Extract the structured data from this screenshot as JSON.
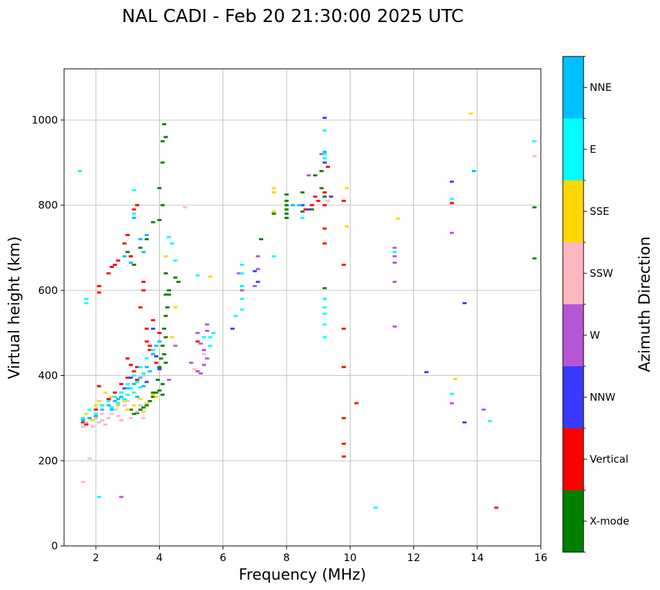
{
  "chart_data": {
    "type": "scatter",
    "title": "NAL CADI - Feb 20 21:30:00 2025 UTC",
    "xlabel": "Frequency (MHz)",
    "ylabel": "Virtual height (km)",
    "xlim": [
      1,
      16
    ],
    "ylim": [
      0,
      1120
    ],
    "xticks": [
      2,
      4,
      6,
      8,
      10,
      12,
      14,
      16
    ],
    "yticks": [
      0,
      200,
      400,
      600,
      800,
      1000
    ],
    "grid": true,
    "colorbar": {
      "label": "Azimuth Direction",
      "categories": [
        "X-mode",
        "Vertical",
        "NNW",
        "W",
        "SSW",
        "SSE",
        "E",
        "NNE"
      ],
      "colors": [
        "#008000",
        "#ff0000",
        "#3a3aff",
        "#b656d6",
        "#ffb6c1",
        "#ffd700",
        "#00ffff",
        "#00bfff"
      ]
    },
    "series": [
      {
        "name": "X-mode",
        "points": [
          [
            3.0,
            690
          ],
          [
            3.1,
            680
          ],
          [
            3.2,
            660
          ],
          [
            3.4,
            700
          ],
          [
            3.6,
            720
          ],
          [
            3.8,
            760
          ],
          [
            4.0,
            840
          ],
          [
            4.1,
            950
          ],
          [
            4.15,
            990
          ],
          [
            4.1,
            900
          ],
          [
            4.2,
            960
          ],
          [
            4.1,
            800
          ],
          [
            4.0,
            765
          ],
          [
            4.2,
            640
          ],
          [
            4.3,
            590
          ],
          [
            4.25,
            560
          ],
          [
            4.2,
            540
          ],
          [
            4.15,
            510
          ],
          [
            4.2,
            490
          ],
          [
            4.1,
            470
          ],
          [
            4.15,
            450
          ],
          [
            4.05,
            440
          ],
          [
            4.2,
            430
          ],
          [
            4.0,
            420
          ],
          [
            3.95,
            390
          ],
          [
            4.0,
            365
          ],
          [
            3.9,
            360
          ],
          [
            4.1,
            355
          ],
          [
            3.8,
            350
          ],
          [
            3.7,
            340
          ],
          [
            3.6,
            330
          ],
          [
            3.5,
            325
          ],
          [
            3.4,
            320
          ],
          [
            3.3,
            312
          ],
          [
            3.2,
            310
          ],
          [
            3.1,
            320
          ],
          [
            4.3,
            600
          ],
          [
            4.2,
            590
          ],
          [
            4.6,
            620
          ],
          [
            4.5,
            630
          ],
          [
            8.0,
            770
          ],
          [
            8.0,
            780
          ],
          [
            8.0,
            790
          ],
          [
            8.0,
            800
          ],
          [
            8.0,
            810
          ],
          [
            8.0,
            825
          ],
          [
            8.5,
            785
          ],
          [
            8.8,
            790
          ],
          [
            8.5,
            830
          ],
          [
            8.9,
            870
          ],
          [
            9.1,
            880
          ],
          [
            9.1,
            840
          ],
          [
            9.2,
            820
          ],
          [
            9.2,
            605
          ],
          [
            15.8,
            795
          ],
          [
            15.8,
            675
          ],
          [
            7.6,
            780
          ],
          [
            7.2,
            720
          ],
          [
            3.8,
            360
          ],
          [
            4.1,
            380
          ]
        ]
      },
      {
        "name": "Vertical",
        "points": [
          [
            1.6,
            290
          ],
          [
            1.7,
            285
          ],
          [
            1.8,
            300
          ],
          [
            2.0,
            320
          ],
          [
            2.1,
            375
          ],
          [
            2.1,
            610
          ],
          [
            2.1,
            595
          ],
          [
            2.4,
            640
          ],
          [
            2.5,
            655
          ],
          [
            2.6,
            660
          ],
          [
            2.7,
            670
          ],
          [
            2.9,
            710
          ],
          [
            3.0,
            730
          ],
          [
            3.1,
            680
          ],
          [
            3.2,
            790
          ],
          [
            3.3,
            800
          ],
          [
            3.0,
            440
          ],
          [
            3.1,
            425
          ],
          [
            3.2,
            410
          ],
          [
            3.3,
            390
          ],
          [
            3.4,
            560
          ],
          [
            3.5,
            600
          ],
          [
            3.6,
            510
          ],
          [
            3.7,
            470
          ],
          [
            3.8,
            530
          ],
          [
            3.9,
            430
          ],
          [
            3.0,
            395
          ],
          [
            2.8,
            380
          ],
          [
            2.6,
            360
          ],
          [
            2.4,
            345
          ],
          [
            2.2,
            330
          ],
          [
            3.5,
            620
          ],
          [
            3.6,
            480
          ],
          [
            3.7,
            460
          ],
          [
            4.0,
            500
          ],
          [
            8.8,
            800
          ],
          [
            8.9,
            820
          ],
          [
            9.0,
            810
          ],
          [
            9.2,
            830
          ],
          [
            9.2,
            745
          ],
          [
            9.2,
            710
          ],
          [
            9.2,
            800
          ],
          [
            9.8,
            810
          ],
          [
            9.8,
            660
          ],
          [
            9.8,
            510
          ],
          [
            9.8,
            420
          ],
          [
            9.8,
            300
          ],
          [
            9.8,
            240
          ],
          [
            9.8,
            210
          ],
          [
            10.2,
            335
          ],
          [
            13.2,
            805
          ],
          [
            14.6,
            90
          ],
          [
            9.3,
            890
          ],
          [
            8.6,
            790
          ],
          [
            5.2,
            480
          ],
          [
            3.3,
            420
          ]
        ]
      },
      {
        "name": "NNW",
        "points": [
          [
            9.2,
            1005
          ],
          [
            9.2,
            900
          ],
          [
            8.7,
            790
          ],
          [
            8.5,
            800
          ],
          [
            9.4,
            820
          ],
          [
            6.3,
            510
          ],
          [
            7.0,
            645
          ],
          [
            7.1,
            620
          ],
          [
            13.2,
            855
          ],
          [
            13.6,
            570
          ],
          [
            13.9,
            880
          ],
          [
            12.4,
            408
          ],
          [
            13.6,
            290
          ],
          [
            14.2,
            320
          ],
          [
            3.8,
            510
          ],
          [
            3.1,
            395
          ],
          [
            2.9,
            370
          ],
          [
            3.9,
            445
          ],
          [
            4.0,
            415
          ],
          [
            3.6,
            385
          ]
        ]
      },
      {
        "name": "W",
        "points": [
          [
            5.2,
            500
          ],
          [
            5.3,
            475
          ],
          [
            5.4,
            460
          ],
          [
            5.5,
            440
          ],
          [
            5.4,
            425
          ],
          [
            5.0,
            430
          ],
          [
            5.2,
            410
          ],
          [
            5.3,
            405
          ],
          [
            5.5,
            520
          ],
          [
            5.5,
            505
          ],
          [
            4.5,
            470
          ],
          [
            4.3,
            390
          ],
          [
            7.0,
            610
          ],
          [
            7.1,
            650
          ],
          [
            7.1,
            680
          ],
          [
            11.4,
            700
          ],
          [
            11.4,
            680
          ],
          [
            11.4,
            665
          ],
          [
            11.4,
            620
          ],
          [
            13.2,
            735
          ],
          [
            13.2,
            335
          ],
          [
            14.2,
            320
          ],
          [
            8.7,
            870
          ],
          [
            9.1,
            920
          ],
          [
            6.6,
            600
          ],
          [
            6.5,
            640
          ],
          [
            11.4,
            515
          ],
          [
            2.8,
            115
          ]
        ]
      },
      {
        "name": "SSW",
        "points": [
          [
            1.6,
            280
          ],
          [
            1.7,
            290
          ],
          [
            1.9,
            280
          ],
          [
            2.0,
            300
          ],
          [
            2.1,
            290
          ],
          [
            2.2,
            295
          ],
          [
            2.3,
            285
          ],
          [
            2.4,
            300
          ],
          [
            2.5,
            310
          ],
          [
            2.6,
            320
          ],
          [
            2.7,
            305
          ],
          [
            2.8,
            295
          ],
          [
            2.9,
            330
          ],
          [
            3.0,
            340
          ],
          [
            3.1,
            300
          ],
          [
            3.3,
            315
          ],
          [
            3.4,
            330
          ],
          [
            3.5,
            300
          ],
          [
            2.2,
            310
          ],
          [
            1.8,
            205
          ],
          [
            1.6,
            150
          ],
          [
            4.8,
            795
          ],
          [
            15.8,
            915
          ],
          [
            9.3,
            810
          ],
          [
            5.4,
            450
          ],
          [
            5.1,
            415
          ],
          [
            2.0,
            300
          ],
          [
            3.5,
            400
          ]
        ]
      },
      {
        "name": "SSE",
        "points": [
          [
            1.6,
            300
          ],
          [
            1.7,
            310
          ],
          [
            1.9,
            295
          ],
          [
            2.0,
            330
          ],
          [
            2.1,
            340
          ],
          [
            2.3,
            360
          ],
          [
            2.5,
            350
          ],
          [
            2.7,
            330
          ],
          [
            2.9,
            340
          ],
          [
            3.0,
            320
          ],
          [
            3.2,
            330
          ],
          [
            3.4,
            345
          ],
          [
            3.6,
            335
          ],
          [
            3.8,
            355
          ],
          [
            3.5,
            315
          ],
          [
            7.6,
            840
          ],
          [
            7.6,
            830
          ],
          [
            7.6,
            785
          ],
          [
            9.9,
            840
          ],
          [
            9.9,
            750
          ],
          [
            11.5,
            768
          ],
          [
            13.8,
            1015
          ],
          [
            13.3,
            392
          ],
          [
            5.6,
            632
          ],
          [
            4.2,
            680
          ],
          [
            4.5,
            560
          ],
          [
            4.4,
            490
          ],
          [
            3.9,
            350
          ]
        ]
      },
      {
        "name": "E",
        "points": [
          [
            1.5,
            880
          ],
          [
            1.7,
            580
          ],
          [
            1.7,
            570
          ],
          [
            1.6,
            300
          ],
          [
            1.8,
            320
          ],
          [
            2.0,
            310
          ],
          [
            2.2,
            330
          ],
          [
            2.4,
            340
          ],
          [
            2.6,
            350
          ],
          [
            2.8,
            360
          ],
          [
            3.0,
            380
          ],
          [
            3.2,
            400
          ],
          [
            3.4,
            420
          ],
          [
            3.6,
            440
          ],
          [
            3.8,
            460
          ],
          [
            3.1,
            370
          ],
          [
            3.3,
            385
          ],
          [
            3.5,
            405
          ],
          [
            3.0,
            355
          ],
          [
            3.2,
            360
          ],
          [
            3.4,
            372
          ],
          [
            2.9,
            345
          ],
          [
            2.7,
            335
          ],
          [
            2.5,
            325
          ],
          [
            2.1,
            115
          ],
          [
            4.4,
            710
          ],
          [
            4.3,
            725
          ],
          [
            4.5,
            670
          ],
          [
            5.4,
            490
          ],
          [
            5.6,
            470
          ],
          [
            5.6,
            490
          ],
          [
            5.7,
            500
          ],
          [
            6.6,
            660
          ],
          [
            6.6,
            640
          ],
          [
            6.6,
            610
          ],
          [
            6.6,
            580
          ],
          [
            6.6,
            555
          ],
          [
            6.4,
            540
          ],
          [
            7.6,
            680
          ],
          [
            8.5,
            770
          ],
          [
            9.2,
            975
          ],
          [
            9.2,
            920
          ],
          [
            9.2,
            910
          ],
          [
            9.2,
            580
          ],
          [
            9.2,
            560
          ],
          [
            9.2,
            545
          ],
          [
            9.2,
            520
          ],
          [
            9.2,
            490
          ],
          [
            13.2,
            815
          ],
          [
            13.2,
            357
          ],
          [
            10.8,
            90
          ],
          [
            15.8,
            950
          ],
          [
            14.4,
            293
          ],
          [
            11.4,
            690
          ],
          [
            5.2,
            635
          ],
          [
            3.2,
            835
          ],
          [
            3.2,
            780
          ]
        ]
      },
      {
        "name": "NNE",
        "points": [
          [
            1.6,
            295
          ],
          [
            1.8,
            300
          ],
          [
            2.0,
            305
          ],
          [
            2.2,
            320
          ],
          [
            2.4,
            330
          ],
          [
            2.6,
            340
          ],
          [
            2.8,
            350
          ],
          [
            3.0,
            370
          ],
          [
            3.2,
            380
          ],
          [
            3.4,
            395
          ],
          [
            3.6,
            420
          ],
          [
            3.8,
            450
          ],
          [
            2.9,
            680
          ],
          [
            3.1,
            665
          ],
          [
            3.2,
            770
          ],
          [
            3.4,
            720
          ],
          [
            3.6,
            730
          ],
          [
            3.5,
            690
          ],
          [
            9.2,
            925
          ],
          [
            8.2,
            800
          ],
          [
            8.4,
            800
          ],
          [
            13.9,
            880
          ],
          [
            3.3,
            350
          ],
          [
            3.5,
            375
          ],
          [
            3.7,
            410
          ],
          [
            2.7,
            345
          ],
          [
            2.5,
            320
          ],
          [
            3.9,
            470
          ],
          [
            4.0,
            480
          ]
        ]
      }
    ]
  }
}
